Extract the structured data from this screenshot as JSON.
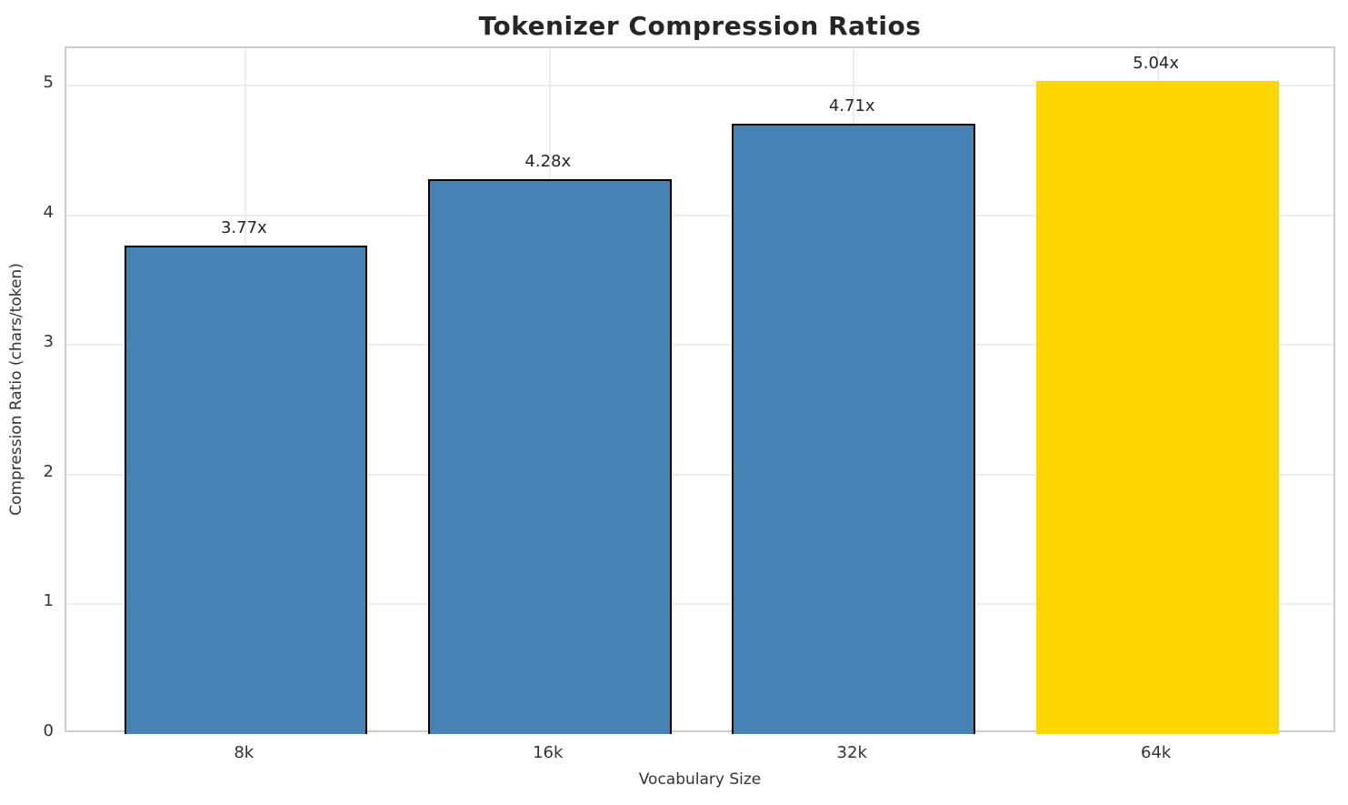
{
  "chart_data": {
    "type": "bar",
    "title": "Tokenizer Compression Ratios",
    "xlabel": "Vocabulary Size",
    "ylabel": "Compression Ratio (chars/token)",
    "categories": [
      "8k",
      "16k",
      "32k",
      "64k"
    ],
    "values": [
      3.77,
      4.28,
      4.71,
      5.04
    ],
    "bar_labels": [
      "3.77x",
      "4.28x",
      "4.71x",
      "5.04x"
    ],
    "bar_colors": [
      "#4682B4",
      "#4682B4",
      "#4682B4",
      "#FFD700"
    ],
    "bar_edge_colors": [
      "#000000",
      "#000000",
      "#000000",
      "none"
    ],
    "series_color": "#4682B4",
    "highlight_color": "#FFD700",
    "yticks": [
      0,
      1,
      2,
      3,
      4,
      5
    ],
    "ylim": [
      0,
      5.29
    ],
    "bar_width_ratio": 0.8,
    "grid": true,
    "legend": "none"
  }
}
